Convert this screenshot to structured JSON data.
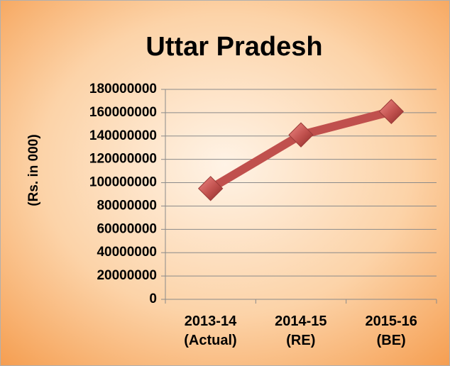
{
  "chart_data": {
    "type": "line",
    "title": "Uttar Pradesh",
    "y_label": "(Rs. in 000)",
    "categories": [
      "2013-14\n(Actual)",
      "2014-15\n(RE)",
      "2015-16\n(BE)"
    ],
    "series": [
      {
        "name": "Uttar Pradesh",
        "color": "#c0504d",
        "values": [
          95000000,
          141000000,
          161000000
        ]
      }
    ],
    "ylim": [
      0,
      180000000
    ],
    "yticks": [
      0,
      20000000,
      40000000,
      60000000,
      80000000,
      100000000,
      120000000,
      140000000,
      160000000,
      180000000
    ],
    "grid": true
  }
}
